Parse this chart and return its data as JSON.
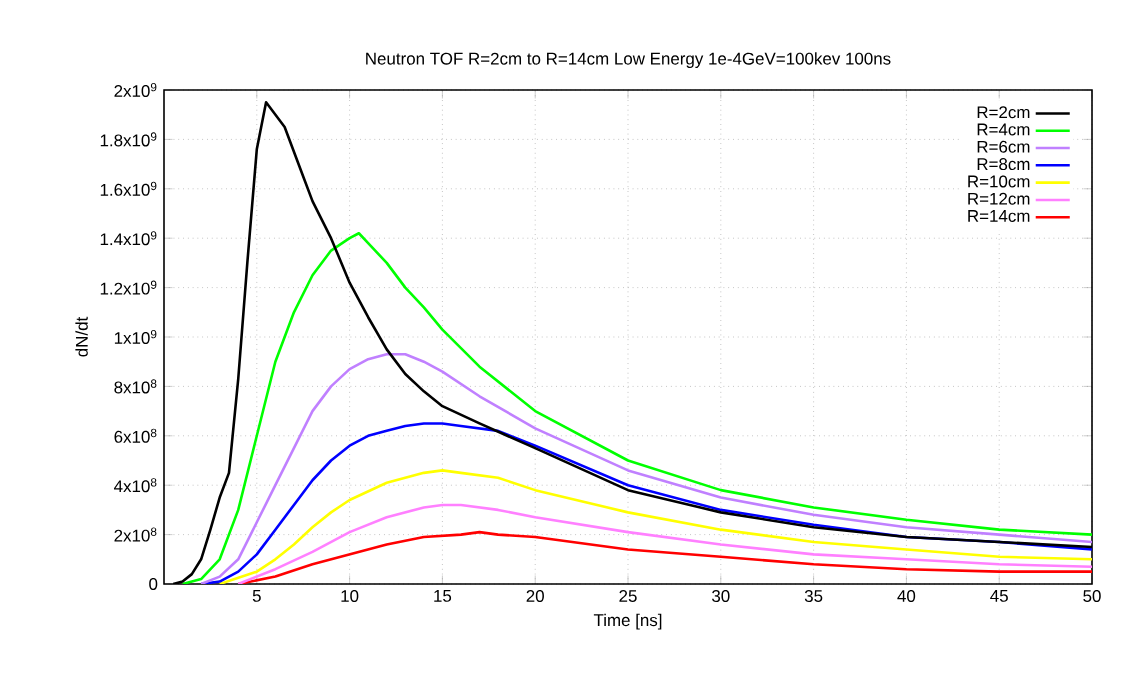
{
  "chart_data": {
    "type": "line",
    "title": "Neutron TOF R=2cm to R=14cm Low Energy 1e-4GeV=100kev 100ns",
    "xlabel": "Time [ns]",
    "ylabel": "dN/dt",
    "xlim": [
      0,
      50
    ],
    "xticks": [
      5,
      10,
      15,
      20,
      25,
      30,
      35,
      40,
      45,
      50
    ],
    "ylim": [
      0,
      2000000000
    ],
    "yticks": [
      0,
      {
        "value": 200000000,
        "label": "2x10$^{8}$"
      },
      {
        "value": 400000000,
        "label": "4x10$^{8}$"
      },
      {
        "value": 600000000,
        "label": "6x10$^{8}$"
      },
      {
        "value": 800000000,
        "label": "8x10$^{8}$"
      },
      {
        "value": 1000000000,
        "label": "1x10$^{9}$"
      },
      {
        "value": 1200000000,
        "label": "1.2x10$^{9}$"
      },
      {
        "value": 1400000000,
        "label": "1.4x10$^{9}$"
      },
      {
        "value": 1600000000,
        "label": "1.6x10$^{9}$"
      },
      {
        "value": 1800000000,
        "label": "1.8x10$^{9}$"
      },
      {
        "value": 2000000000,
        "label": "2x10$^{9}$"
      }
    ],
    "grid": true,
    "legend": "top right",
    "series": [
      {
        "name": "R=2cm",
        "color": "#000000",
        "x": [
          0.5,
          1,
          1.5,
          2,
          2.5,
          3,
          3.5,
          4,
          4.5,
          5,
          5.5,
          6,
          6.5,
          7,
          7.5,
          8,
          9,
          10,
          11,
          12,
          13,
          14,
          15,
          17,
          20,
          25,
          30,
          35,
          40,
          45,
          50
        ],
        "values": [
          0,
          10000000,
          40000000,
          100000000,
          220000000,
          350000000,
          450000000,
          830000000,
          1310000000,
          1760000000,
          1950000000,
          1900000000,
          1850000000,
          1750000000,
          1650000000,
          1550000000,
          1400000000,
          1220000000,
          1080000000,
          950000000,
          850000000,
          780000000,
          720000000,
          650000000,
          550000000,
          380000000,
          290000000,
          230000000,
          190000000,
          170000000,
          150000000
        ]
      },
      {
        "name": "R=4cm",
        "color": "#00ff00",
        "x": [
          1,
          2,
          3,
          4,
          5,
          6,
          7,
          8,
          9,
          10,
          10.5,
          11,
          12,
          13,
          14,
          15,
          17,
          20,
          25,
          30,
          35,
          40,
          45,
          50
        ],
        "values": [
          0,
          20000000,
          100000000,
          300000000,
          600000000,
          900000000,
          1100000000,
          1250000000,
          1350000000,
          1400000000,
          1420000000,
          1380000000,
          1300000000,
          1200000000,
          1120000000,
          1030000000,
          880000000,
          700000000,
          500000000,
          380000000,
          310000000,
          260000000,
          220000000,
          200000000
        ]
      },
      {
        "name": "R=6cm",
        "color": "#c080ff",
        "x": [
          2,
          3,
          4,
          5,
          6,
          7,
          8,
          9,
          10,
          11,
          12,
          13,
          14,
          15,
          17,
          20,
          25,
          30,
          35,
          40,
          45,
          50
        ],
        "values": [
          0,
          30000000,
          100000000,
          250000000,
          400000000,
          550000000,
          700000000,
          800000000,
          870000000,
          910000000,
          930000000,
          930000000,
          900000000,
          860000000,
          760000000,
          630000000,
          460000000,
          350000000,
          280000000,
          230000000,
          200000000,
          170000000
        ]
      },
      {
        "name": "R=8cm",
        "color": "#0000ff",
        "x": [
          2,
          3,
          4,
          5,
          6,
          7,
          8,
          9,
          10,
          11,
          12,
          13,
          14,
          15,
          16,
          18,
          20,
          25,
          30,
          35,
          40,
          45,
          50
        ],
        "values": [
          0,
          10000000,
          50000000,
          120000000,
          220000000,
          320000000,
          420000000,
          500000000,
          560000000,
          600000000,
          620000000,
          640000000,
          650000000,
          650000000,
          640000000,
          620000000,
          560000000,
          400000000,
          300000000,
          240000000,
          190000000,
          170000000,
          140000000
        ]
      },
      {
        "name": "R=10cm",
        "color": "#ffff00",
        "x": [
          3,
          5,
          6,
          7,
          8,
          9,
          10,
          12,
          14,
          15,
          16,
          18,
          20,
          25,
          30,
          35,
          40,
          45,
          50
        ],
        "values": [
          0,
          50000000,
          100000000,
          160000000,
          230000000,
          290000000,
          340000000,
          410000000,
          450000000,
          460000000,
          450000000,
          430000000,
          380000000,
          290000000,
          220000000,
          170000000,
          140000000,
          110000000,
          100000000
        ]
      },
      {
        "name": "R=12cm",
        "color": "#ff80ff",
        "x": [
          4,
          6,
          8,
          10,
          12,
          14,
          15,
          16,
          18,
          20,
          25,
          30,
          35,
          40,
          45,
          50
        ],
        "values": [
          0,
          60000000,
          130000000,
          210000000,
          270000000,
          310000000,
          320000000,
          320000000,
          300000000,
          270000000,
          210000000,
          160000000,
          120000000,
          100000000,
          80000000,
          70000000
        ]
      },
      {
        "name": "R=14cm",
        "color": "#ff0000",
        "x": [
          4,
          6,
          8,
          10,
          12,
          14,
          16,
          17,
          18,
          20,
          25,
          30,
          35,
          40,
          45,
          50
        ],
        "values": [
          0,
          30000000,
          80000000,
          120000000,
          160000000,
          190000000,
          200000000,
          210000000,
          200000000,
          190000000,
          140000000,
          110000000,
          80000000,
          60000000,
          50000000,
          50000000
        ]
      }
    ]
  }
}
